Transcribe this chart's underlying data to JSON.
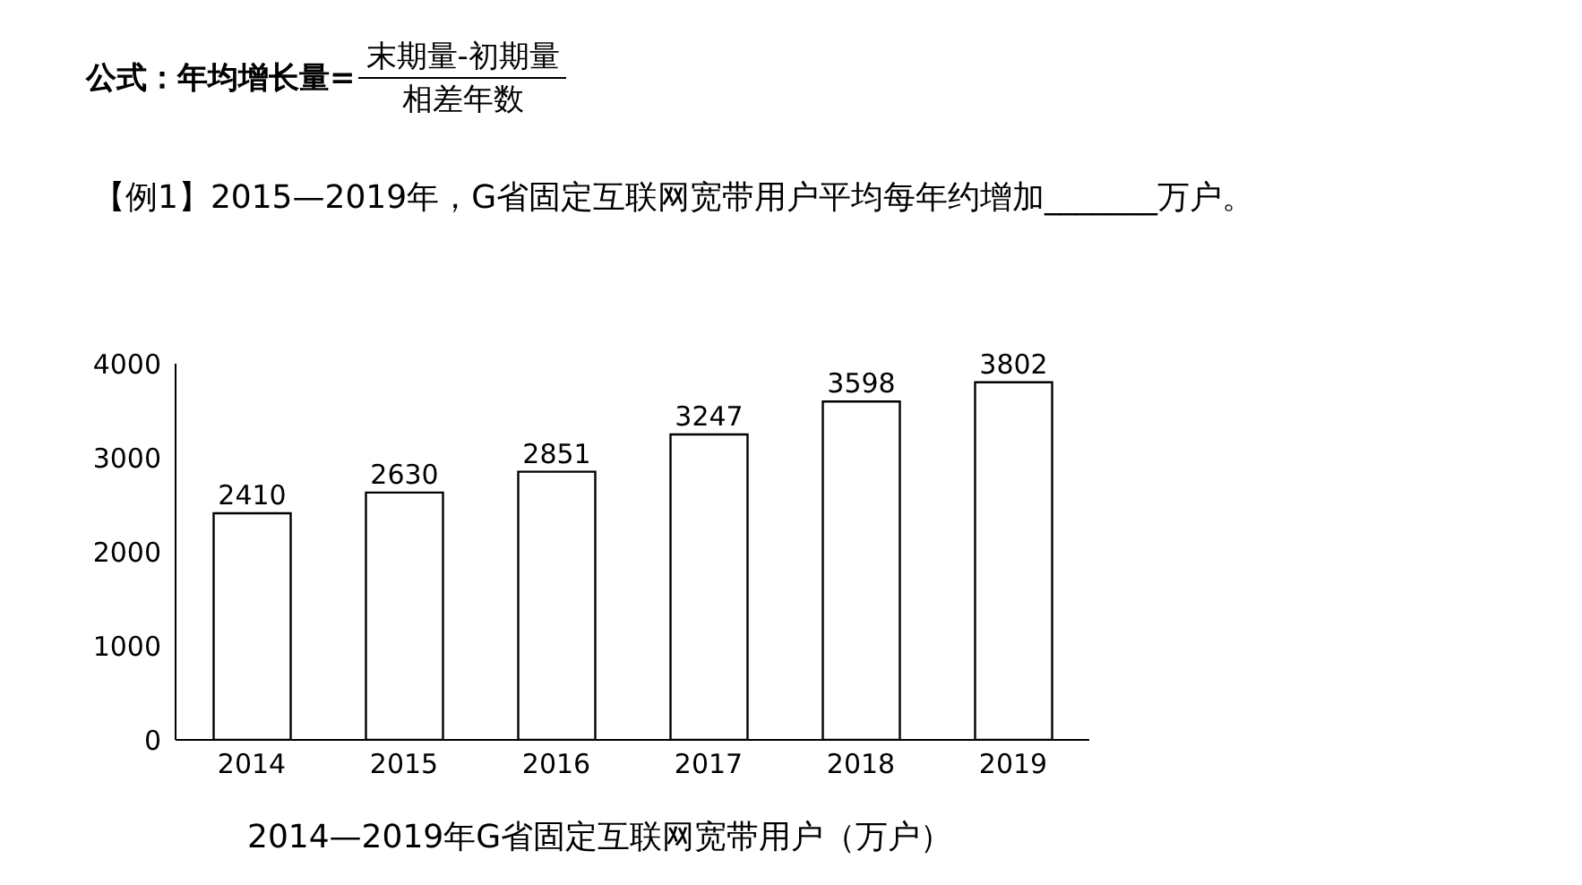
{
  "chart_data": {
    "type": "bar",
    "title": "2014—2019年G省固定互联网宽带用户（万户）",
    "annotations": [
      "公式：年均增长量=",
      "末期量-初期量",
      "相差年数",
      "【例1】2015—2019年，G省固定互联网宽带用户平均每年约增加_______万户。"
    ],
    "categories": [
      "2014",
      "2015",
      "2016",
      "2017",
      "2018",
      "2019"
    ],
    "values": [
      2410,
      2630,
      2851,
      3247,
      3598,
      3802
    ],
    "color": "#ffffff",
    "ylim": [
      0,
      4000
    ],
    "yticks": [
      0,
      1000,
      2000,
      3000,
      4000
    ],
    "grid": false,
    "data_labels": true
  }
}
